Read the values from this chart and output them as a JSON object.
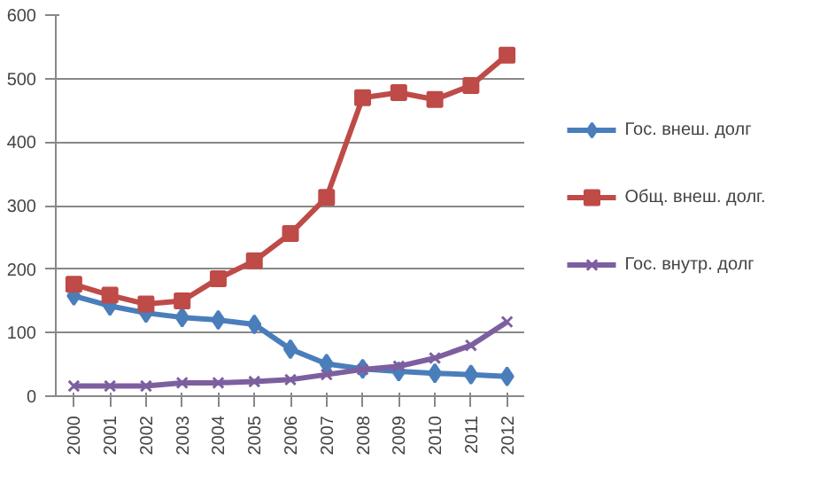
{
  "chart_data": {
    "type": "line",
    "categories": [
      "2000",
      "2001",
      "2002",
      "2003",
      "2004",
      "2005",
      "2006",
      "2007",
      "2008",
      "2009",
      "2010",
      "2011",
      "2012"
    ],
    "series": [
      {
        "name": "Гос. внеш. долг",
        "color": "#4a7ebb",
        "marker": "diamond",
        "values": [
          158,
          142,
          131,
          124,
          120,
          113,
          74,
          51,
          43,
          39,
          36,
          34,
          31
        ]
      },
      {
        "name": "Общ. внеш. долг.",
        "color": "#be4b48",
        "marker": "square",
        "values": [
          176,
          159,
          145,
          150,
          185,
          213,
          256,
          313,
          470,
          478,
          467,
          489,
          537
        ]
      },
      {
        "name": "Гос. внутр. долг",
        "color": "#7d5fa0",
        "marker": "cross",
        "values": [
          16,
          16,
          16,
          21,
          21,
          23,
          26,
          34,
          42,
          47,
          60,
          80,
          117
        ]
      }
    ],
    "ylim": [
      0,
      600
    ],
    "yticks": [
      0,
      100,
      200,
      300,
      400,
      500,
      600
    ],
    "grid": "y",
    "legend": "right"
  }
}
